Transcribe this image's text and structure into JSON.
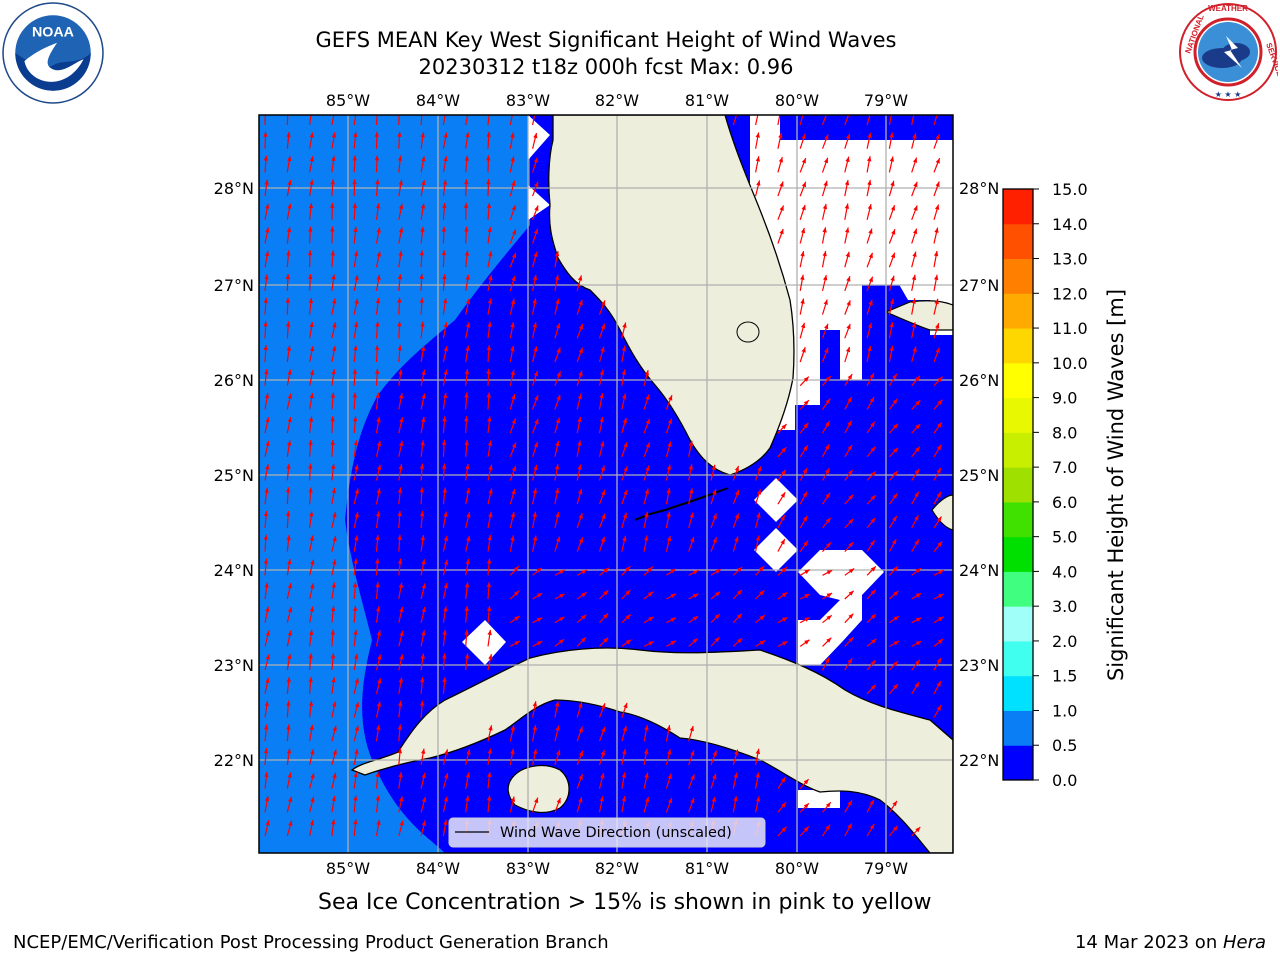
{
  "title": {
    "line1": "GEFS MEAN Key West Significant Height of Wind Waves",
    "line2": "20230312 t18z 000h fcst   Max: 0.96"
  },
  "map": {
    "lon_range": [
      -86.0,
      -78.3
    ],
    "lat_range": [
      21.0,
      28.75
    ],
    "lon_ticks": [
      "85°W",
      "84°W",
      "83°W",
      "82°W",
      "81°W",
      "80°W",
      "79°W"
    ],
    "lat_ticks": [
      "22°N",
      "23°N",
      "24°N",
      "25°N",
      "26°N",
      "27°N",
      "28°N"
    ],
    "legend": "Wind Wave Direction (unscaled)",
    "colors": {
      "band_0_05": "#0000ff",
      "band_05_10": "#0a7ff5",
      "land": "#eeeedd",
      "arrow": "#ff0000",
      "grid": "#b0b0b0"
    }
  },
  "colorbar": {
    "label": "Significant Height of Wind Waves [m]",
    "ticks": [
      "0.0",
      "0.5",
      "1.0",
      "1.5",
      "2.0",
      "3.0",
      "4.0",
      "5.0",
      "6.0",
      "7.0",
      "8.0",
      "9.0",
      "10.0",
      "11.0",
      "12.0",
      "13.0",
      "14.0",
      "15.0"
    ],
    "colors": [
      "#0000ff",
      "#0a7ff5",
      "#00e0ff",
      "#40ffef",
      "#a0fff8",
      "#40ff80",
      "#00e000",
      "#40e000",
      "#a0e000",
      "#c8ef00",
      "#e8f800",
      "#ffff00",
      "#ffd700",
      "#ffaa00",
      "#ff8000",
      "#ff5000",
      "#ff2000"
    ]
  },
  "ice_note": "Sea Ice Concentration > 15% is shown in pink to yellow",
  "footer": {
    "left": "NCEP/EMC/Verification Post Processing Product Generation Branch",
    "right_date": "14 Mar 2023 on ",
    "right_machine": "Hera"
  }
}
